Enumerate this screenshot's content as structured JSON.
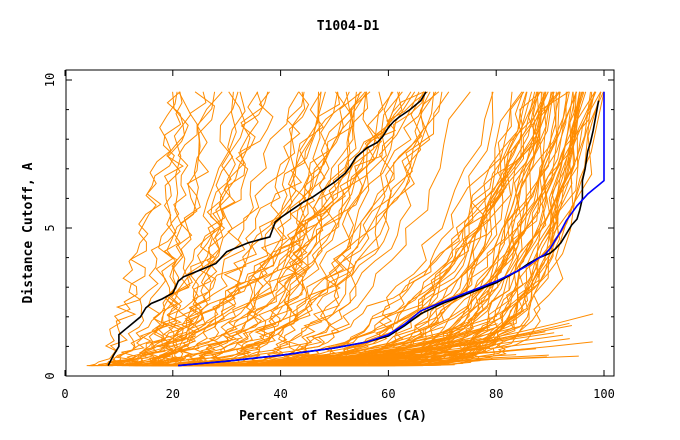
{
  "chart_data": {
    "type": "line",
    "title": "T1004-D1",
    "xlabel": "Percent of Residues (CA)",
    "ylabel": "Distance Cutoff, A",
    "xlim": [
      0,
      100
    ],
    "ylim": [
      0,
      10
    ],
    "xticks": [
      "0",
      "20",
      "40",
      "60",
      "80",
      "100"
    ],
    "yticks": [
      "0",
      "5",
      "10"
    ],
    "grid": false,
    "colors": {
      "background_models": "#ff8c00",
      "highlight_a": "#000000",
      "highlight_b": "#0000ff"
    },
    "series": [
      {
        "color": "#000000",
        "x": [
          8,
          9,
          10,
          10,
          12,
          14,
          15,
          16,
          18,
          20,
          21,
          22,
          24,
          26,
          28,
          30,
          32,
          34,
          36,
          38,
          39,
          40,
          42,
          44,
          46,
          48,
          50,
          52,
          53,
          54,
          56,
          58,
          59,
          60,
          61,
          62,
          64,
          66,
          67
        ],
        "y": [
          0.35,
          0.7,
          1.0,
          1.4,
          1.7,
          2.0,
          2.3,
          2.45,
          2.6,
          2.8,
          3.2,
          3.35,
          3.5,
          3.65,
          3.8,
          4.2,
          4.35,
          4.5,
          4.6,
          4.7,
          5.2,
          5.35,
          5.6,
          5.85,
          6.05,
          6.3,
          6.55,
          6.85,
          7.1,
          7.4,
          7.7,
          7.9,
          8.1,
          8.4,
          8.6,
          8.75,
          9.0,
          9.3,
          9.6
        ]
      },
      {
        "color": "#000000",
        "x": [
          21,
          30,
          40,
          50,
          56,
          60,
          63,
          66,
          70,
          75,
          80,
          84,
          86,
          88,
          90,
          91,
          92,
          93,
          94,
          95,
          95.5,
          96,
          96,
          96.5,
          97,
          97.5,
          98,
          98.5,
          99
        ],
        "y": [
          0.35,
          0.5,
          0.7,
          0.95,
          1.15,
          1.35,
          1.7,
          2.1,
          2.45,
          2.8,
          3.15,
          3.55,
          3.8,
          4.0,
          4.15,
          4.3,
          4.5,
          4.8,
          5.1,
          5.3,
          5.6,
          6.0,
          6.6,
          7.0,
          7.6,
          7.9,
          8.3,
          8.8,
          9.3
        ]
      },
      {
        "color": "#0000ff",
        "x": [
          21,
          30,
          40,
          50,
          56,
          60,
          63,
          66,
          70,
          75,
          80,
          84,
          86,
          88,
          89,
          90,
          91,
          92,
          93,
          94,
          95,
          96,
          97,
          98,
          99,
          100,
          100,
          100
        ],
        "y": [
          0.35,
          0.5,
          0.7,
          0.95,
          1.15,
          1.4,
          1.75,
          2.2,
          2.5,
          2.85,
          3.2,
          3.55,
          3.75,
          4.0,
          4.1,
          4.3,
          4.6,
          4.9,
          5.25,
          5.5,
          5.75,
          5.95,
          6.15,
          6.3,
          6.45,
          6.6,
          7.5,
          9.6
        ]
      }
    ]
  }
}
